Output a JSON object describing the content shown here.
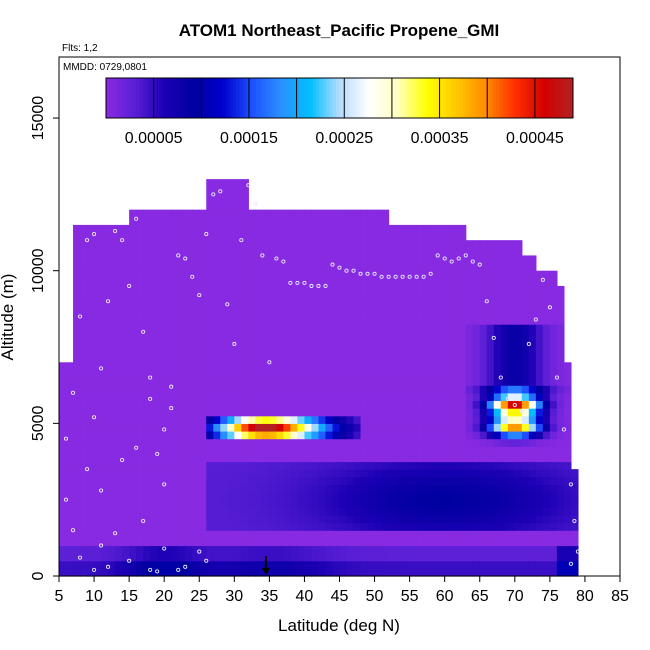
{
  "chart_data": {
    "type": "heatmap",
    "title": "ATOM1 Northeast_Pacific Propene_GMI",
    "subtitle_flights": "Flts: 1,2",
    "subtitle_dates": "MMDD: 0729,0801",
    "xlabel": "Latitude (deg N)",
    "ylabel": "Altitude (m)",
    "xlim": [
      5,
      85
    ],
    "ylim": [
      0,
      17000
    ],
    "x_ticks": [
      "5",
      "10",
      "15",
      "20",
      "25",
      "30",
      "35",
      "40",
      "45",
      "50",
      "55",
      "60",
      "65",
      "70",
      "75",
      "80",
      "85"
    ],
    "y_ticks": [
      "0",
      "5000",
      "10000",
      "15000"
    ],
    "colorbar": {
      "min": 0,
      "max": 0.00049,
      "tick_labels": [
        "0.00005",
        "0.00015",
        "0.00025",
        "0.00035",
        "0.00045"
      ],
      "colors": [
        "#8a2be2",
        "#5a1fd6",
        "#1c00b4",
        "#0000a0",
        "#0000cd",
        "#1e50ff",
        "#2b90ff",
        "#00bfff",
        "#b5dcff",
        "#ffffff",
        "#ffffc0",
        "#ffff00",
        "#ffc800",
        "#ff8c00",
        "#ff3000",
        "#d40000",
        "#b22222"
      ]
    },
    "marker": {
      "lat": 34.5,
      "alt": 0
    },
    "background_value": 2e-06,
    "features": [
      {
        "lat_range": [
          30,
          46
        ],
        "alt_range": [
          4500,
          5200
        ],
        "peak_lat": 33,
        "peak_value": 0.00042
      },
      {
        "lat_range": [
          64,
          76
        ],
        "alt_range": [
          4900,
          6000
        ],
        "peak_lat": 70,
        "peak_value": 0.00046
      },
      {
        "lat_range": [
          26,
          80
        ],
        "alt_range": [
          1400,
          3800
        ],
        "peak_lat": 60,
        "peak_value": 9e-05
      },
      {
        "lat_range": [
          5,
          80
        ],
        "alt_range": [
          0,
          900
        ],
        "peak_lat": 20,
        "peak_value": 0.00012
      }
    ]
  }
}
